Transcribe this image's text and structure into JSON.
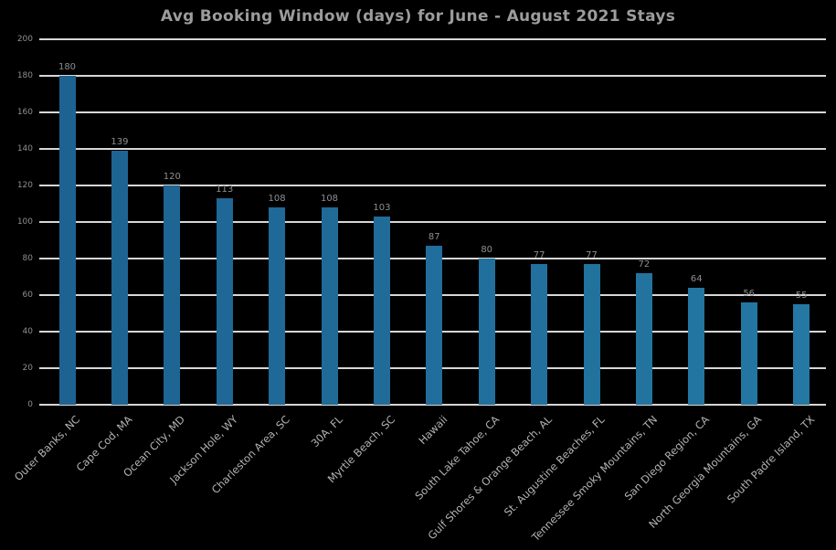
{
  "chart_data": {
    "type": "bar",
    "title": "Avg Booking Window (days) for June - August 2021 Stays",
    "categories": [
      "Outer Banks, NC",
      "Cape Cod, MA",
      "Ocean City, MD",
      "Jackson Hole, WY",
      "Charleston Area, SC",
      "30A, FL",
      "Myrtle Beach, SC",
      "Hawaii",
      "South Lake Tahoe, CA",
      "Gulf Shores & Orange Beach, AL",
      "St. Augustine Beaches, FL",
      "Tennessee Smoky Mountains, TN",
      "San Diego Region, CA",
      "North Georgia Mountains, GA",
      "South Padre Island, TX"
    ],
    "values": [
      180,
      139,
      120,
      113,
      108,
      108,
      103,
      87,
      80,
      77,
      77,
      72,
      64,
      56,
      55
    ],
    "value_labels_shown": true,
    "yticks": [
      0,
      20,
      40,
      60,
      80,
      100,
      120,
      140,
      160,
      180,
      200
    ],
    "ylim": [
      0,
      200
    ],
    "xlabel": "",
    "ylabel": "",
    "grid": "horizontal",
    "legend": "none",
    "x_tick_rotation_deg": -45
  },
  "colors": {
    "background": "#000000",
    "bar_start": "#1e6292",
    "bar_end": "#2478a3",
    "gridline": "#d7d7d7",
    "title_text": "#9c9c9c",
    "y_tick_text": "#8f8f8f",
    "value_label_text": "#8f8f8f",
    "x_tick_text": "#b3b3b3"
  }
}
